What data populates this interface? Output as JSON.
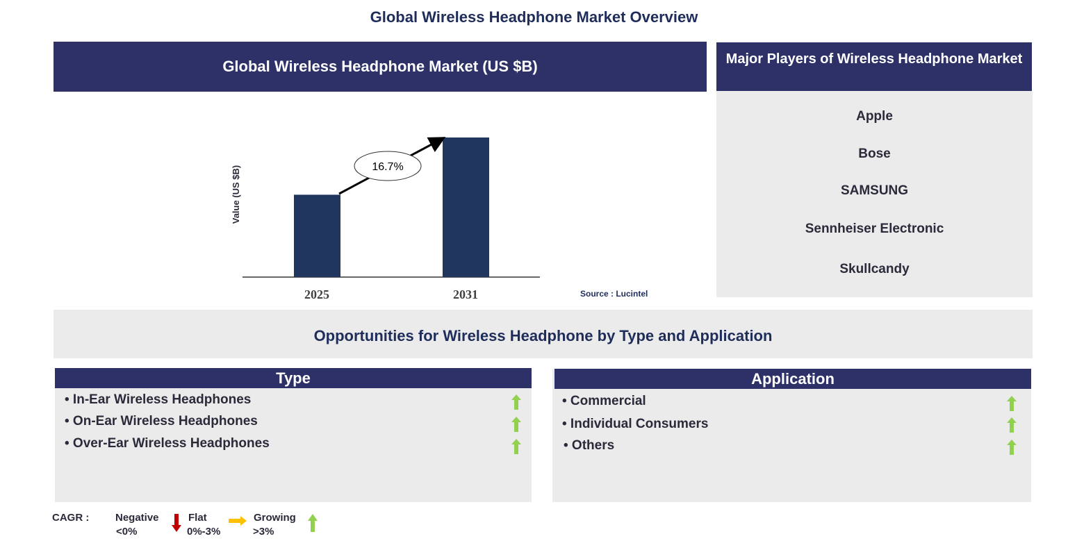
{
  "title": "Global Wireless Headphone Market Overview",
  "chart_header": "Global Wireless Headphone Market (US $B)",
  "chart_data": {
    "type": "bar",
    "categories": [
      "2025",
      "2031"
    ],
    "relative_values": [
      0.59,
      1.0
    ],
    "ylabel": "Value (US $B)",
    "annotation": "16.7%",
    "source": "Source : Lucintel",
    "bar_color": "#20365f",
    "grid": false
  },
  "players": {
    "header": "Major Players of Wireless Headphone Market",
    "items": [
      "Apple",
      "Bose",
      "SAMSUNG",
      "Sennheiser Electronic",
      "Skullcandy"
    ]
  },
  "opportunities": {
    "title": "Opportunities for Wireless Headphone by Type and Application",
    "type": {
      "header": "Type",
      "items": [
        "• In-Ear Wireless Headphones",
        "• On-Ear Wireless Headphones",
        "• Over-Ear Wireless Headphones"
      ],
      "trend": "growing"
    },
    "application": {
      "header": "Application",
      "items": [
        "• Commercial",
        "• Individual  Consumers",
        "• Others"
      ],
      "trend": "growing"
    }
  },
  "legend": {
    "label": "CAGR  :",
    "negative": "Negative",
    "negative_range": "<0%",
    "flat": "Flat",
    "flat_range": "0%-3%",
    "growing": "Growing",
    "growing_range": ">3%",
    "colors": {
      "negative": "#c00000",
      "flat": "#ffc000",
      "growing": "#92d050"
    }
  }
}
